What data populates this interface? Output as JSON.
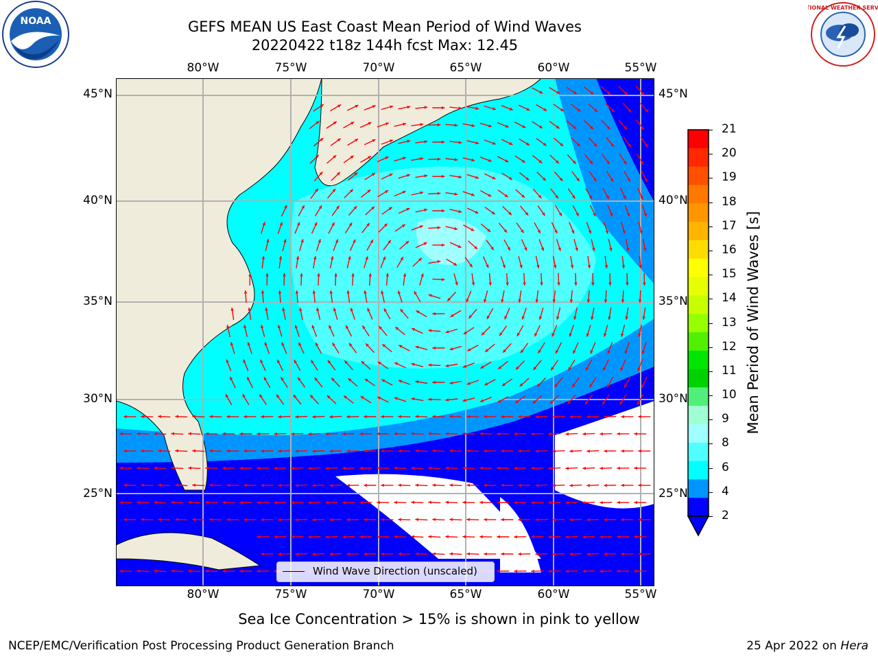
{
  "header": {
    "title_line1": "GEFS MEAN US East Coast Mean Period of Wind Waves",
    "title_line2": "20220422 t18z 144h fcst   Max: 12.45"
  },
  "logos": {
    "left": {
      "icon": "noaa-logo-icon",
      "text": "NOAA"
    },
    "right": {
      "icon": "nws-logo-icon",
      "text": "NATIONAL WEATHER SERVICE"
    }
  },
  "map": {
    "lon_labels": [
      "80°W",
      "75°W",
      "70°W",
      "65°W",
      "60°W",
      "55°W"
    ],
    "lat_labels": [
      "45°N",
      "40°N",
      "35°N",
      "30°N",
      "25°N"
    ],
    "legend_text": "Wind Wave Direction (unscaled)",
    "land_color": "#efecdc",
    "arrow_color": "#ff0000"
  },
  "colorbar": {
    "label": "Mean Period of Wind Waves [s]",
    "ticks": [
      "21",
      "20",
      "19",
      "18",
      "17",
      "16",
      "15",
      "14",
      "13",
      "12",
      "11",
      "10",
      "9",
      "8",
      "6",
      "4",
      "2"
    ],
    "colors": [
      "#ff0000",
      "#ff2800",
      "#ff5000",
      "#ff7800",
      "#ff9600",
      "#ffb400",
      "#ffdc00",
      "#ffff00",
      "#e6ff00",
      "#c8ff00",
      "#96ff00",
      "#50f000",
      "#00e600",
      "#00d200",
      "#50f078",
      "#a0ffd2",
      "#a0ffff",
      "#50ffff",
      "#00ffff",
      "#0096ff",
      "#0000ff"
    ]
  },
  "caption": "Sea Ice Concentration > 15% is shown in pink to yellow",
  "footer": {
    "left": "NCEP/EMC/Verification Post Processing Product Generation Branch",
    "date": "25 Apr 2022 on ",
    "machine": "Hera"
  }
}
